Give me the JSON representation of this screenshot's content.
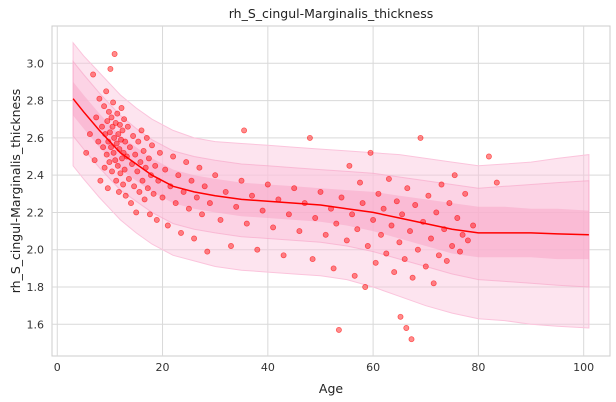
{
  "chart_data": {
    "type": "scatter",
    "title": "rh_S_cingul-Marginalis_thickness",
    "xlabel": "Age",
    "ylabel": "rh_S_cingul-Marginalis_thickness",
    "xlim": [
      -1,
      105
    ],
    "ylim": [
      1.43,
      3.2
    ],
    "x_ticks": [
      0,
      20,
      40,
      60,
      80,
      100
    ],
    "y_ticks": [
      1.6,
      1.8,
      2.0,
      2.2,
      2.4,
      2.6,
      2.8,
      3.0
    ],
    "grid": true,
    "colors": {
      "points": "#ff0000",
      "mean_line": "#ff0000",
      "band_outer": "#fbc4dc",
      "band_inner": "#f7a3c6"
    },
    "model": {
      "x": [
        3,
        5,
        8,
        10,
        12,
        15,
        18,
        22,
        26,
        30,
        35,
        40,
        45,
        50,
        55,
        60,
        65,
        70,
        75,
        80,
        85,
        90,
        95,
        101
      ],
      "mean": [
        2.81,
        2.74,
        2.64,
        2.58,
        2.52,
        2.46,
        2.4,
        2.34,
        2.31,
        2.29,
        2.27,
        2.26,
        2.25,
        2.24,
        2.22,
        2.2,
        2.17,
        2.14,
        2.11,
        2.09,
        2.09,
        2.09,
        2.085,
        2.08
      ],
      "band_outer_low": [
        2.45,
        2.38,
        2.28,
        2.22,
        2.16,
        2.09,
        2.03,
        1.97,
        1.94,
        1.91,
        1.89,
        1.88,
        1.87,
        1.86,
        1.84,
        1.8,
        1.75,
        1.7,
        1.66,
        1.63,
        1.62,
        1.6,
        1.59,
        1.58
      ],
      "band_outer_high": [
        3.11,
        3.04,
        2.95,
        2.89,
        2.83,
        2.76,
        2.7,
        2.64,
        2.6,
        2.58,
        2.57,
        2.56,
        2.55,
        2.54,
        2.53,
        2.52,
        2.51,
        2.49,
        2.47,
        2.45,
        2.46,
        2.47,
        2.49,
        2.51
      ],
      "band_inner_low": [
        2.61,
        2.54,
        2.44,
        2.38,
        2.32,
        2.26,
        2.2,
        2.14,
        2.11,
        2.09,
        2.07,
        2.06,
        2.05,
        2.04,
        2.02,
        1.99,
        1.95,
        1.91,
        1.87,
        1.84,
        1.83,
        1.82,
        1.81,
        1.8
      ],
      "band_inner_high": [
        3.01,
        2.94,
        2.84,
        2.78,
        2.72,
        2.65,
        2.59,
        2.53,
        2.5,
        2.48,
        2.46,
        2.45,
        2.44,
        2.43,
        2.42,
        2.41,
        2.39,
        2.37,
        2.35,
        2.33,
        2.34,
        2.35,
        2.36,
        2.37
      ],
      "band_core_low": [
        2.72,
        2.65,
        2.55,
        2.49,
        2.43,
        2.37,
        2.31,
        2.25,
        2.22,
        2.2,
        2.18,
        2.17,
        2.16,
        2.15,
        2.13,
        2.1,
        2.06,
        2.02,
        1.98,
        1.96,
        1.96,
        1.96,
        1.95,
        1.95
      ],
      "band_core_high": [
        2.9,
        2.83,
        2.73,
        2.67,
        2.61,
        2.55,
        2.49,
        2.43,
        2.4,
        2.38,
        2.36,
        2.35,
        2.34,
        2.33,
        2.32,
        2.31,
        2.29,
        2.27,
        2.25,
        2.23,
        2.23,
        2.22,
        2.22,
        2.21
      ]
    },
    "points": [
      [
        5.5,
        2.52
      ],
      [
        6.2,
        2.62
      ],
      [
        6.8,
        2.94
      ],
      [
        7.1,
        2.48
      ],
      [
        7.4,
        2.71
      ],
      [
        7.8,
        2.58
      ],
      [
        8.0,
        2.81
      ],
      [
        8.2,
        2.37
      ],
      [
        8.5,
        2.66
      ],
      [
        8.7,
        2.55
      ],
      [
        8.9,
        2.77
      ],
      [
        9.0,
        2.44
      ],
      [
        9.1,
        2.62
      ],
      [
        9.3,
        2.85
      ],
      [
        9.4,
        2.51
      ],
      [
        9.5,
        2.69
      ],
      [
        9.6,
        2.33
      ],
      [
        9.7,
        2.58
      ],
      [
        9.8,
        2.74
      ],
      [
        9.9,
        2.47
      ],
      [
        10.0,
        2.63
      ],
      [
        10.1,
        2.97
      ],
      [
        10.2,
        2.55
      ],
      [
        10.3,
        2.71
      ],
      [
        10.4,
        2.42
      ],
      [
        10.5,
        2.66
      ],
      [
        10.6,
        2.79
      ],
      [
        10.7,
        2.52
      ],
      [
        10.8,
        2.6
      ],
      [
        10.9,
        3.05
      ],
      [
        11.0,
        2.48
      ],
      [
        11.1,
        2.68
      ],
      [
        11.2,
        2.37
      ],
      [
        11.3,
        2.57
      ],
      [
        11.4,
        2.73
      ],
      [
        11.5,
        2.45
      ],
      [
        11.6,
        2.62
      ],
      [
        11.7,
        2.31
      ],
      [
        11.8,
        2.54
      ],
      [
        11.9,
        2.67
      ],
      [
        12.0,
        2.41
      ],
      [
        12.1,
        2.59
      ],
      [
        12.2,
        2.76
      ],
      [
        12.3,
        2.49
      ],
      [
        12.4,
        2.64
      ],
      [
        12.5,
        2.35
      ],
      [
        12.6,
        2.52
      ],
      [
        12.7,
        2.7
      ],
      [
        12.8,
        2.43
      ],
      [
        12.9,
        2.58
      ],
      [
        13.0,
        2.29
      ],
      [
        13.2,
        2.5
      ],
      [
        13.4,
        2.66
      ],
      [
        13.6,
        2.38
      ],
      [
        13.8,
        2.55
      ],
      [
        14.0,
        2.25
      ],
      [
        14.2,
        2.46
      ],
      [
        14.4,
        2.61
      ],
      [
        14.6,
        2.34
      ],
      [
        14.8,
        2.51
      ],
      [
        15.0,
        2.2
      ],
      [
        15.2,
        2.42
      ],
      [
        15.4,
        2.58
      ],
      [
        15.6,
        2.31
      ],
      [
        15.8,
        2.47
      ],
      [
        16.0,
        2.64
      ],
      [
        16.2,
        2.37
      ],
      [
        16.4,
        2.53
      ],
      [
        16.6,
        2.27
      ],
      [
        16.8,
        2.44
      ],
      [
        17.0,
        2.6
      ],
      [
        17.2,
        2.33
      ],
      [
        17.4,
        2.49
      ],
      [
        17.6,
        2.19
      ],
      [
        17.8,
        2.4
      ],
      [
        18.0,
        2.56
      ],
      [
        18.3,
        2.3
      ],
      [
        18.6,
        2.45
      ],
      [
        18.9,
        2.16
      ],
      [
        19.2,
        2.37
      ],
      [
        19.5,
        2.52
      ],
      [
        20.0,
        2.28
      ],
      [
        20.5,
        2.43
      ],
      [
        21.0,
        2.13
      ],
      [
        21.5,
        2.34
      ],
      [
        22.0,
        2.5
      ],
      [
        22.5,
        2.25
      ],
      [
        23.0,
        2.4
      ],
      [
        23.5,
        2.09
      ],
      [
        24.0,
        2.31
      ],
      [
        24.5,
        2.47
      ],
      [
        25.0,
        2.22
      ],
      [
        25.5,
        2.37
      ],
      [
        26.0,
        2.06
      ],
      [
        26.5,
        2.28
      ],
      [
        27.0,
        2.44
      ],
      [
        27.5,
        2.19
      ],
      [
        28.0,
        2.34
      ],
      [
        28.5,
        1.99
      ],
      [
        29.0,
        2.25
      ],
      [
        30.0,
        2.4
      ],
      [
        31.0,
        2.16
      ],
      [
        32.0,
        2.31
      ],
      [
        33.0,
        2.02
      ],
      [
        34.0,
        2.23
      ],
      [
        35.0,
        2.37
      ],
      [
        35.5,
        2.64
      ],
      [
        36.0,
        2.14
      ],
      [
        37.0,
        2.29
      ],
      [
        38.0,
        2.0
      ],
      [
        39.0,
        2.21
      ],
      [
        40.0,
        2.35
      ],
      [
        41.0,
        2.12
      ],
      [
        42.0,
        2.27
      ],
      [
        43.0,
        1.97
      ],
      [
        44.0,
        2.19
      ],
      [
        45.0,
        2.33
      ],
      [
        46.0,
        2.1
      ],
      [
        47.0,
        2.25
      ],
      [
        48.0,
        2.6
      ],
      [
        48.5,
        1.95
      ],
      [
        49.0,
        2.17
      ],
      [
        50.0,
        2.31
      ],
      [
        51.0,
        2.08
      ],
      [
        52.0,
        2.22
      ],
      [
        52.5,
        1.9
      ],
      [
        53.0,
        2.14
      ],
      [
        53.5,
        1.57
      ],
      [
        54.0,
        2.28
      ],
      [
        55.0,
        2.05
      ],
      [
        55.5,
        2.45
      ],
      [
        56.0,
        2.19
      ],
      [
        56.5,
        1.86
      ],
      [
        57.0,
        2.11
      ],
      [
        57.5,
        2.36
      ],
      [
        58.0,
        2.25
      ],
      [
        58.5,
        1.8
      ],
      [
        59.0,
        2.02
      ],
      [
        59.5,
        2.52
      ],
      [
        60.0,
        2.16
      ],
      [
        60.5,
        1.93
      ],
      [
        61.0,
        2.3
      ],
      [
        61.5,
        2.08
      ],
      [
        62.0,
        2.22
      ],
      [
        62.5,
        1.98
      ],
      [
        63.0,
        2.38
      ],
      [
        63.5,
        2.13
      ],
      [
        64.0,
        1.88
      ],
      [
        64.5,
        2.26
      ],
      [
        65.0,
        2.04
      ],
      [
        65.2,
        1.64
      ],
      [
        65.5,
        2.19
      ],
      [
        66.0,
        1.95
      ],
      [
        66.3,
        1.58
      ],
      [
        66.5,
        2.33
      ],
      [
        67.0,
        2.1
      ],
      [
        67.3,
        1.52
      ],
      [
        67.5,
        1.85
      ],
      [
        68.0,
        2.24
      ],
      [
        68.5,
        2.0
      ],
      [
        69.0,
        2.6
      ],
      [
        69.5,
        2.15
      ],
      [
        70.0,
        1.91
      ],
      [
        70.5,
        2.29
      ],
      [
        71.0,
        2.06
      ],
      [
        71.5,
        1.82
      ],
      [
        72.0,
        2.2
      ],
      [
        72.5,
        1.97
      ],
      [
        73.0,
        2.35
      ],
      [
        73.5,
        2.11
      ],
      [
        74.0,
        1.94
      ],
      [
        74.5,
        2.25
      ],
      [
        75.0,
        2.02
      ],
      [
        75.5,
        2.4
      ],
      [
        76.0,
        2.17
      ],
      [
        76.5,
        1.99
      ],
      [
        77.0,
        2.08
      ],
      [
        77.5,
        2.3
      ],
      [
        78.0,
        2.05
      ],
      [
        79.0,
        2.13
      ],
      [
        82.0,
        2.5
      ],
      [
        83.5,
        2.36
      ]
    ]
  }
}
